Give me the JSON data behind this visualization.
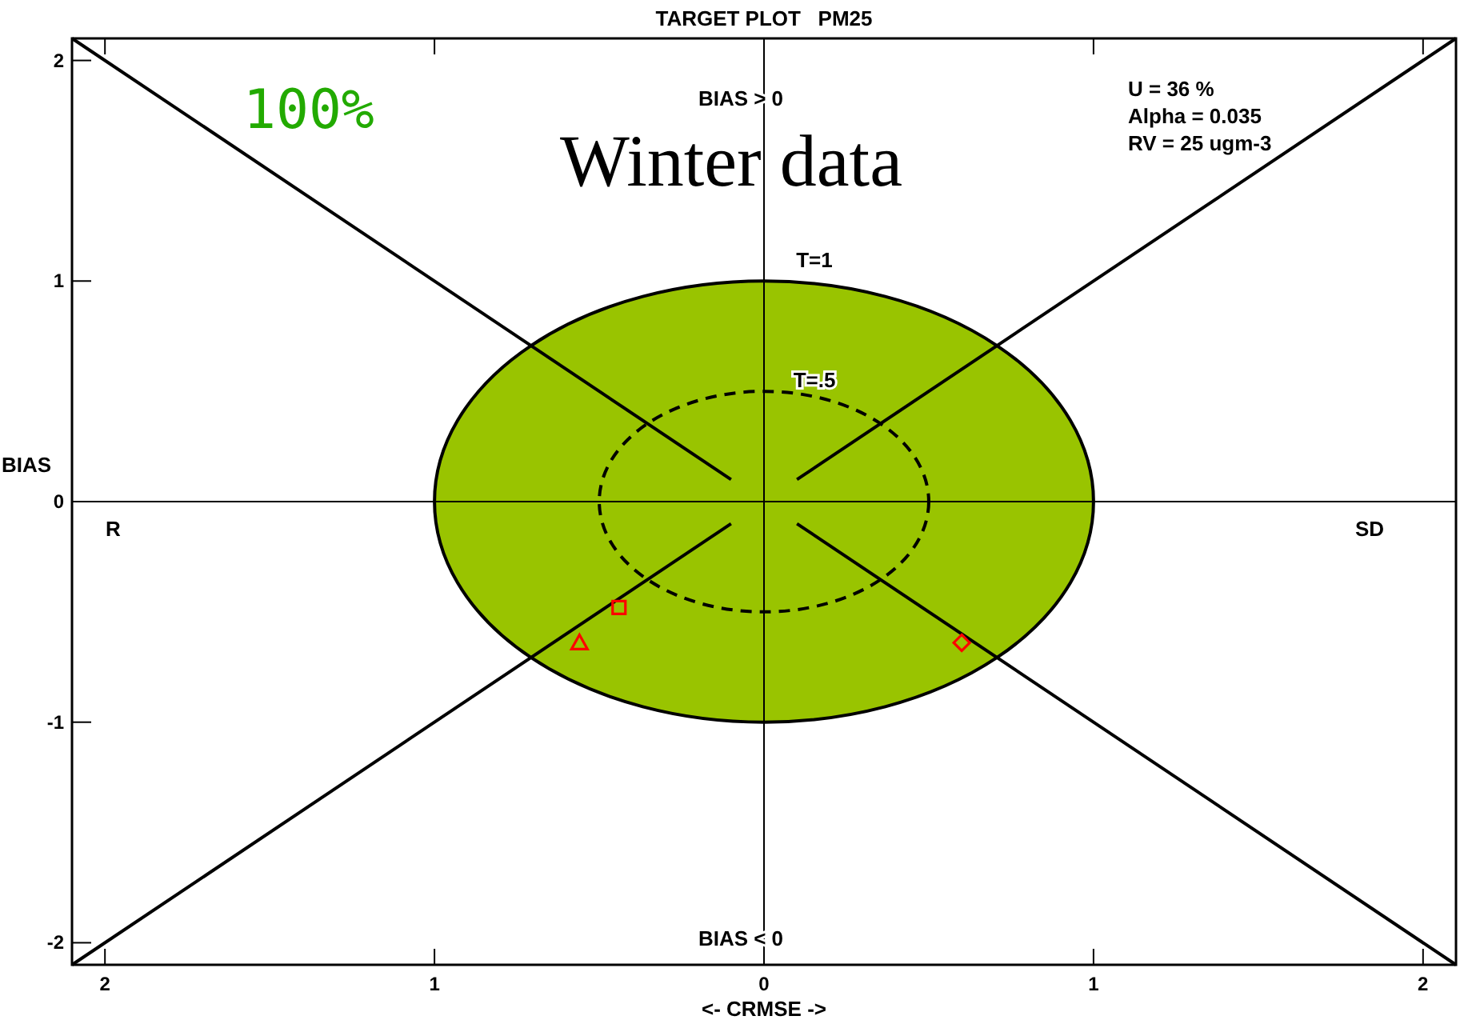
{
  "chart_data": {
    "type": "scatter",
    "title": "TARGET PLOT   PM25",
    "xlabel": "<- CRMSE ->",
    "ylabel": "BIAS",
    "xlim": [
      -2.1,
      2.1
    ],
    "ylim": [
      -2.1,
      2.1
    ],
    "xticks": [
      {
        "value": -2,
        "label": "2"
      },
      {
        "value": -1,
        "label": "1"
      },
      0,
      1,
      2
    ],
    "yticks": [
      -2,
      -1,
      0,
      1,
      2
    ],
    "annotations": [
      "100%",
      "Winter data",
      "BIAS > 0",
      "BIAS < 0",
      "R",
      "SD",
      "U = 36 %",
      "Alpha = 0.035",
      "RV = 25 ugm-3",
      "T=1",
      "T=.5"
    ],
    "series": [
      {
        "type": "area",
        "color": "#99c400",
        "x": [
          -1,
          -0.98,
          -0.95,
          -0.9,
          -0.8,
          -0.7,
          -0.6,
          -0.4,
          -0.2,
          0,
          0.2,
          0.4,
          0.6,
          0.7,
          0.8,
          0.9,
          0.95,
          0.98,
          1
        ],
        "values": [
          0,
          0.2,
          0.31,
          0.44,
          0.6,
          0.71,
          0.8,
          0.92,
          0.98,
          1,
          0.98,
          0.92,
          0.8,
          0.71,
          0.6,
          0.44,
          0.31,
          0.2,
          0
        ]
      },
      {
        "type": "area",
        "color": "#99c400",
        "x": [
          -1,
          -0.98,
          -0.95,
          -0.9,
          -0.8,
          -0.7,
          -0.6,
          -0.4,
          -0.2,
          0,
          0.2,
          0.4,
          0.6,
          0.7,
          0.8,
          0.9,
          0.95,
          0.98,
          1
        ],
        "values": [
          0,
          -0.2,
          -0.31,
          -0.44,
          -0.6,
          -0.71,
          -0.8,
          -0.92,
          -0.98,
          -1,
          -0.98,
          -0.92,
          -0.8,
          -0.71,
          -0.6,
          -0.44,
          -0.31,
          -0.2,
          0
        ]
      },
      {
        "type": "line",
        "color": "#000000",
        "x": [
          -2.1,
          -0.1
        ],
        "values": [
          2.1,
          0.1
        ]
      },
      {
        "type": "line",
        "color": "#000000",
        "x": [
          0.1,
          2.1
        ],
        "values": [
          0.1,
          2.1
        ]
      },
      {
        "type": "line",
        "color": "#000000",
        "x": [
          -2.1,
          -0.1
        ],
        "values": [
          -2.1,
          -0.1
        ]
      },
      {
        "type": "line",
        "color": "#000000",
        "x": [
          0.1,
          2.1
        ],
        "values": [
          -0.1,
          -2.1
        ]
      },
      {
        "color": "#ff0000",
        "marker": "triangle",
        "x": [
          -0.56
        ],
        "values": [
          -0.64
        ]
      },
      {
        "color": "#ff0000",
        "marker": "square",
        "x": [
          -0.44
        ],
        "values": [
          -0.48
        ]
      },
      {
        "color": "#ff0000",
        "marker": "diamond",
        "x": [
          0.6
        ],
        "values": [
          -0.64
        ]
      }
    ]
  }
}
